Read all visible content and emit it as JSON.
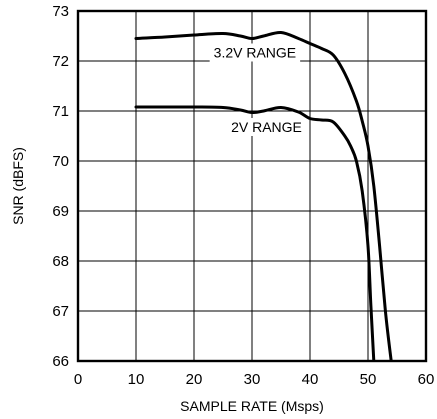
{
  "chart_data": {
    "type": "line",
    "xlabel": "SAMPLE RATE (Msps)",
    "ylabel": "SNR (dBFS)",
    "xlim": [
      0,
      60
    ],
    "ylim": [
      66,
      73
    ],
    "xticks": [
      0,
      10,
      20,
      30,
      40,
      50,
      60
    ],
    "yticks": [
      66,
      67,
      68,
      69,
      70,
      71,
      72,
      73
    ],
    "grid": true,
    "series": [
      {
        "name": "3.2V RANGE",
        "x": [
          10,
          15,
          20,
          25,
          28,
          30,
          32,
          35,
          38,
          40,
          42,
          44,
          46,
          48,
          49,
          50,
          51,
          52,
          53,
          54
        ],
        "y": [
          72.45,
          72.48,
          72.52,
          72.55,
          72.5,
          72.45,
          72.5,
          72.57,
          72.45,
          72.35,
          72.25,
          72.12,
          71.75,
          71.2,
          70.8,
          70.3,
          69.5,
          68.3,
          67.0,
          66.0
        ]
      },
      {
        "name": "2V RANGE",
        "x": [
          10,
          15,
          20,
          25,
          28,
          30,
          32,
          35,
          38,
          40,
          42,
          44,
          46,
          47,
          48,
          49,
          50,
          50.5,
          51
        ],
        "y": [
          71.08,
          71.08,
          71.08,
          71.07,
          71.02,
          70.97,
          71.0,
          71.07,
          70.98,
          70.85,
          70.82,
          70.78,
          70.5,
          70.3,
          70.0,
          69.4,
          68.3,
          67.1,
          66.0
        ]
      }
    ]
  }
}
